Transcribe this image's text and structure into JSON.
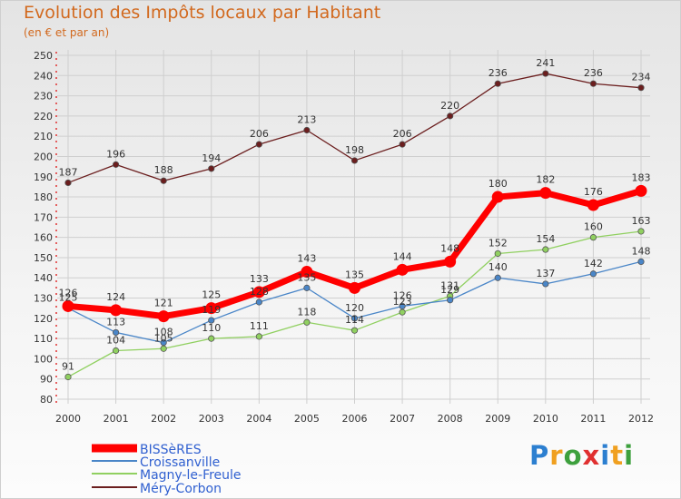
{
  "chart_data": {
    "type": "line",
    "title": "Evolution des Impôts locaux par Habitant",
    "subtitle": "(en € et par an)",
    "xlabel": "",
    "ylabel": "",
    "x": [
      "2000",
      "2001",
      "2002",
      "2003",
      "2004",
      "2005",
      "2006",
      "2007",
      "2008",
      "2009",
      "2010",
      "2011",
      "2012"
    ],
    "ylim": [
      80,
      250
    ],
    "yticks": [
      80,
      90,
      100,
      110,
      120,
      130,
      140,
      150,
      160,
      170,
      180,
      190,
      200,
      210,
      220,
      230,
      240,
      250
    ],
    "grid": true,
    "legend": "bottom-left",
    "series": [
      {
        "name": "BISSèRES",
        "color": "#ff0000",
        "values": [
          126,
          124,
          121,
          125,
          133,
          143,
          135,
          144,
          148,
          180,
          182,
          176,
          183
        ]
      },
      {
        "name": "Croissanville",
        "color": "#4a86c8",
        "values": [
          125,
          113,
          108,
          119,
          128,
          135,
          120,
          126,
          129,
          140,
          137,
          142,
          148
        ]
      },
      {
        "name": "Magny-le-Freule",
        "color": "#90d060",
        "values": [
          91,
          104,
          105,
          110,
          111,
          118,
          114,
          123,
          131,
          152,
          154,
          160,
          163
        ]
      },
      {
        "name": "Méry-Corbon",
        "color": "#6b1e1e",
        "values": [
          187,
          196,
          188,
          194,
          206,
          213,
          198,
          206,
          220,
          236,
          241,
          236,
          234
        ]
      }
    ]
  },
  "logo": {
    "letters": [
      "P",
      "r",
      "o",
      "x",
      "i",
      "t",
      "i"
    ],
    "colors": [
      "#2c7fd0",
      "#f0a020",
      "#3da03d",
      "#e03030",
      "#2c7fd0",
      "#f0a020",
      "#3da03d"
    ]
  }
}
